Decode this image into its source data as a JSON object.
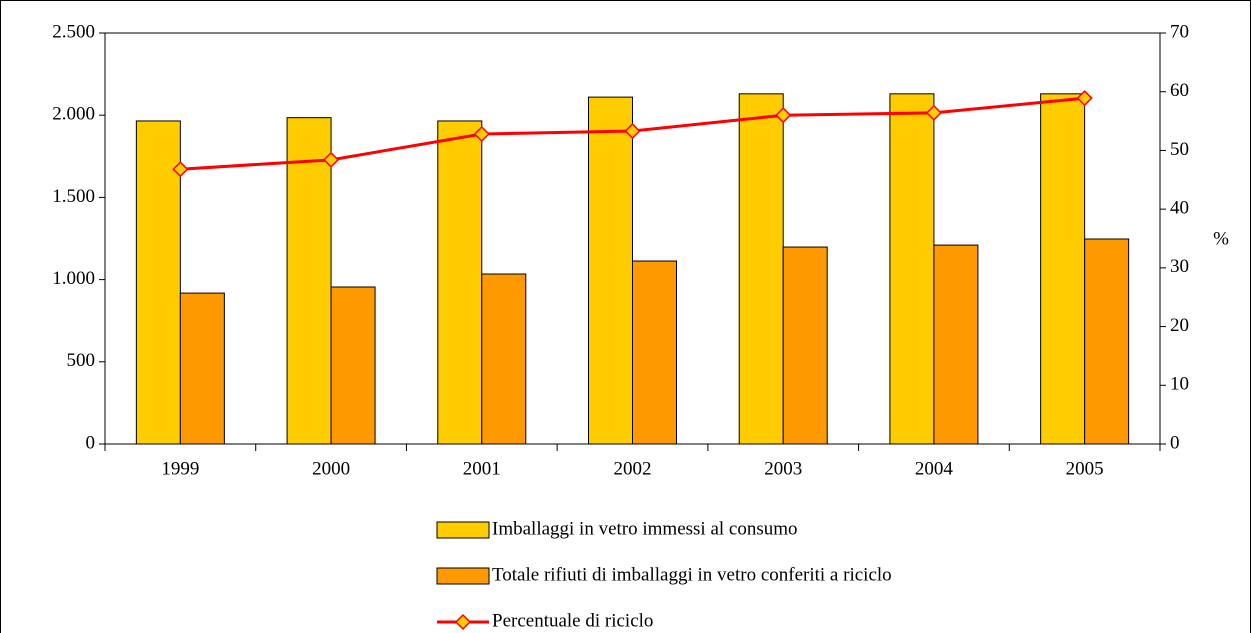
{
  "chart_data": {
    "type": "bar-line",
    "categories": [
      "1999",
      "2000",
      "2001",
      "2002",
      "2003",
      "2004",
      "2005"
    ],
    "series": [
      {
        "name": "Imballaggi in vetro immessi al consumo",
        "color": "#ffcc00",
        "type": "bar",
        "values": [
          1965,
          1985,
          1965,
          2110,
          2130,
          2130,
          2130
        ]
      },
      {
        "name": "Totale rifiuti di imballaggi in vetro conferiti a riciclo",
        "color": "#ff9900",
        "type": "bar",
        "values": [
          918,
          955,
          1034,
          1113,
          1198,
          1210,
          1247
        ]
      },
      {
        "name": "Percentuale di riciclo",
        "color": "#ff0000",
        "marker_color": "#ffcc00",
        "type": "line",
        "axis": "y2",
        "values": [
          46.8,
          48.4,
          52.8,
          53.3,
          56.0,
          56.4,
          58.9
        ]
      }
    ],
    "ylim": [
      0,
      2500
    ],
    "yticks": [
      0,
      500,
      {
        "value": 1000,
        "label": "1.000"
      },
      {
        "value": 1500,
        "label": "1.500"
      },
      {
        "value": 2000,
        "label": "2.000"
      },
      {
        "value": 2500,
        "label": "2.500"
      }
    ],
    "y2lim": [
      0,
      70
    ],
    "y2ticks": [
      0,
      10,
      20,
      30,
      40,
      50,
      60,
      70
    ],
    "y2label": "%",
    "grid": false,
    "legend": "bottom"
  }
}
